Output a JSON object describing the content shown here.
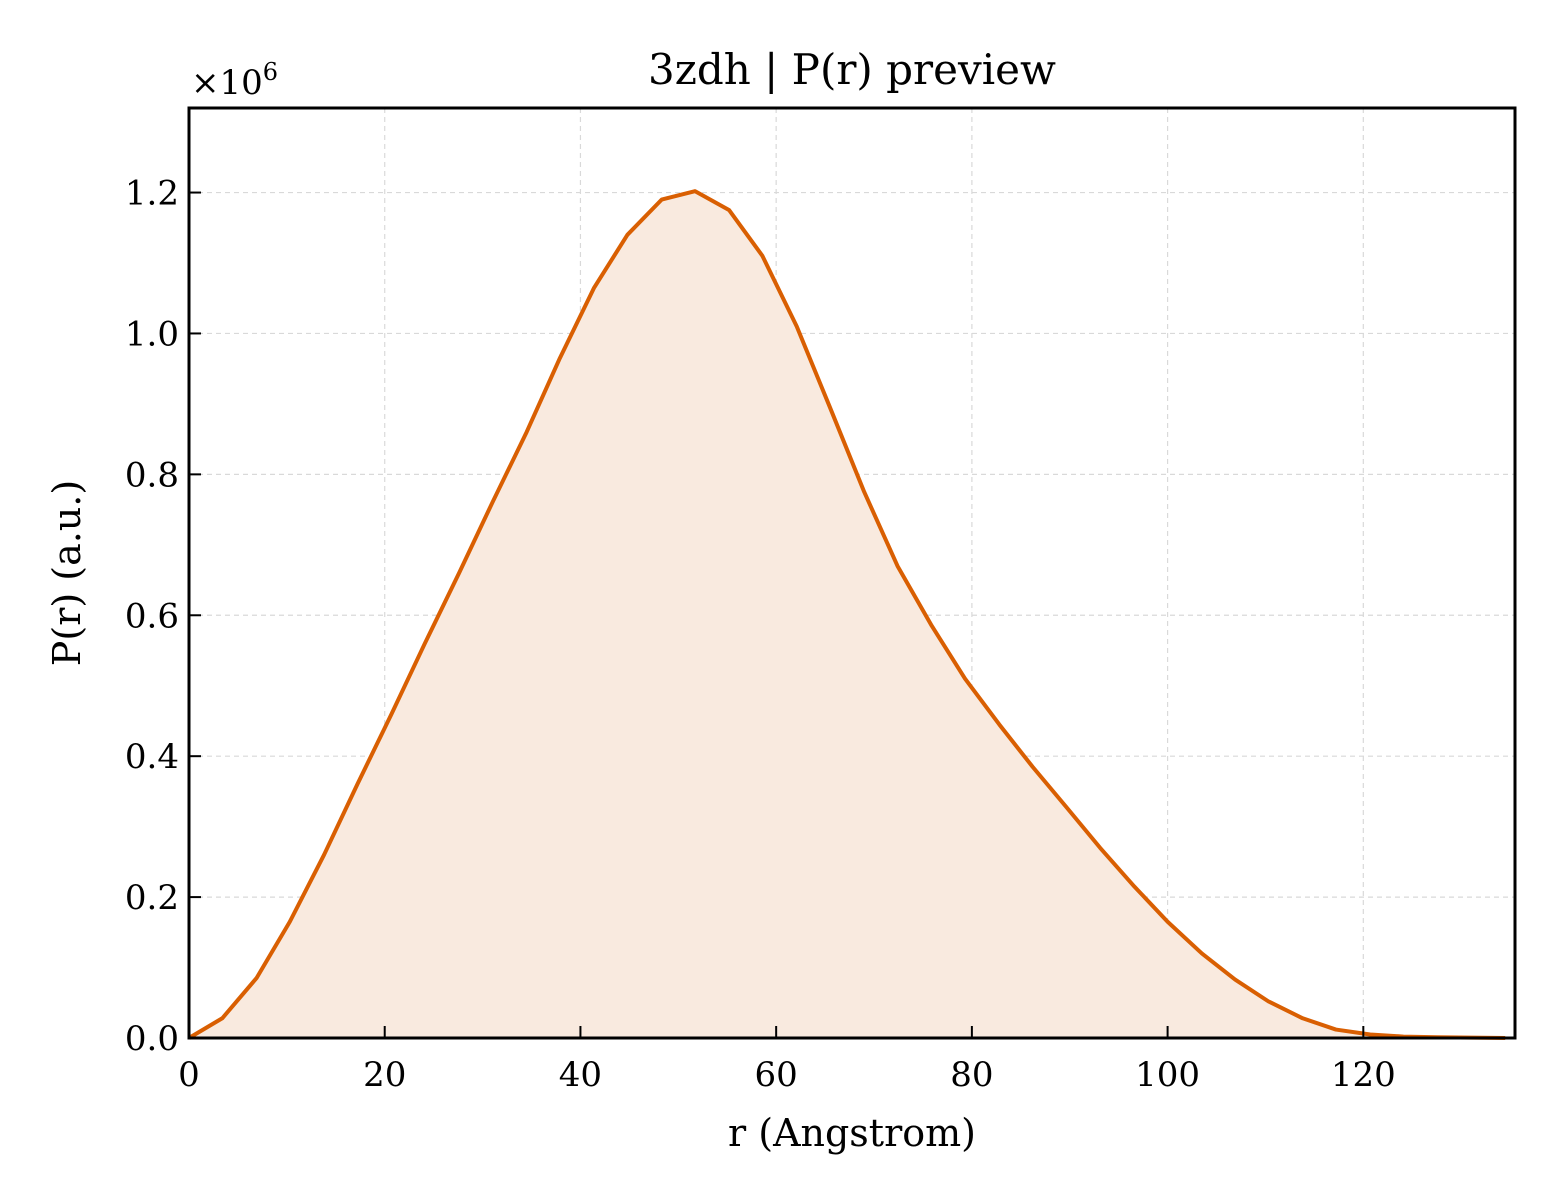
{
  "chart_data": {
    "type": "line",
    "title": "3zdh | P(r) preview",
    "xlabel": "r (Angstrom)",
    "ylabel": "P(r) (a.u.)",
    "y_multiplier": "×10",
    "y_multiplier_exponent": "6",
    "xlim": [
      0,
      135.5
    ],
    "ylim": [
      0,
      1.32
    ],
    "x_ticks": [
      0,
      20,
      40,
      60,
      80,
      100,
      120
    ],
    "x_tick_labels": [
      "0",
      "20",
      "40",
      "60",
      "80",
      "100",
      "120"
    ],
    "y_ticks": [
      0.0,
      0.2,
      0.4,
      0.6,
      0.8,
      1.0,
      1.2
    ],
    "y_tick_labels": [
      "0.0",
      "0.2",
      "0.4",
      "0.6",
      "0.8",
      "1.0",
      "1.2"
    ],
    "grid": true,
    "fill_under": true,
    "colors": {
      "line": "#d95f02",
      "fill": "#f9eadf",
      "grid": "#d9d9d9"
    },
    "series": [
      {
        "x": [
          0,
          3.4,
          6.9,
          10.3,
          13.8,
          17.2,
          20.7,
          24.1,
          27.6,
          31.0,
          34.5,
          37.9,
          41.4,
          44.8,
          48.3,
          51.7,
          55.2,
          58.6,
          62.1,
          65.5,
          69.0,
          72.4,
          75.9,
          79.3,
          82.8,
          86.2,
          89.7,
          93.1,
          96.6,
          100.0,
          103.5,
          106.9,
          110.3,
          113.8,
          117.2,
          120.7,
          124.1,
          127.6,
          131.0,
          134.5
        ],
        "y": [
          0.0,
          0.028,
          0.085,
          0.165,
          0.26,
          0.36,
          0.46,
          0.56,
          0.66,
          0.76,
          0.86,
          0.965,
          1.065,
          1.14,
          1.19,
          1.202,
          1.175,
          1.11,
          1.01,
          0.895,
          0.775,
          0.67,
          0.585,
          0.51,
          0.445,
          0.385,
          0.327,
          0.27,
          0.215,
          0.165,
          0.12,
          0.083,
          0.052,
          0.028,
          0.012,
          0.005,
          0.002,
          0.001,
          0.0005,
          0.0
        ]
      }
    ]
  }
}
